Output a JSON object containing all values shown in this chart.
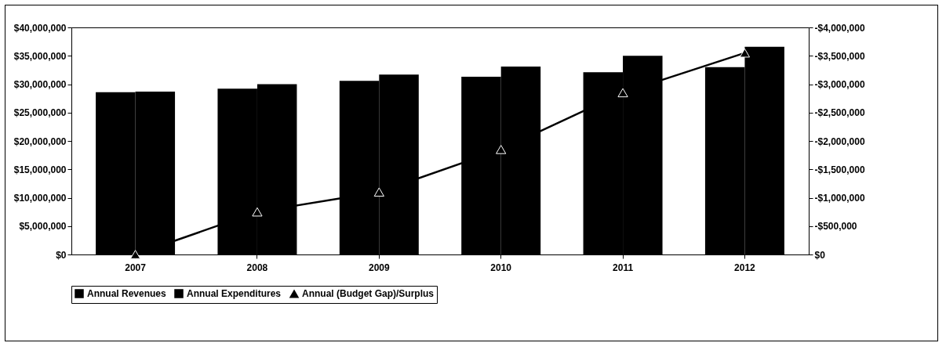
{
  "chart_data": {
    "type": "bar",
    "categories": [
      "2007",
      "2008",
      "2009",
      "2010",
      "2011",
      "2012"
    ],
    "series": [
      {
        "name": "Annual Revenues",
        "color": "#000000",
        "values": [
          28600000,
          29200000,
          30600000,
          31300000,
          32100000,
          33000000
        ]
      },
      {
        "name": "Annual Expenditures",
        "color": "#000000",
        "values": [
          28700000,
          30000000,
          31700000,
          33100000,
          35000000,
          36600000
        ]
      },
      {
        "name": "Annual (Budget Gap)/Surplus",
        "type": "line",
        "axis": "y2",
        "color": "#000000",
        "values": [
          0,
          -750000,
          -1100000,
          -1850000,
          -2850000,
          -3550000
        ]
      }
    ],
    "ylim": [
      0,
      40000000
    ],
    "yticks": [
      {
        "value": 0,
        "label": "$0"
      },
      {
        "value": 5000000,
        "label": "$5,000,000"
      },
      {
        "value": 10000000,
        "label": "$10,000,000"
      },
      {
        "value": 15000000,
        "label": "$15,000,000"
      },
      {
        "value": 20000000,
        "label": "$20,000,000"
      },
      {
        "value": 25000000,
        "label": "$25,000,000"
      },
      {
        "value": 30000000,
        "label": "$30,000,000"
      },
      {
        "value": 35000000,
        "label": "$35,000,000"
      },
      {
        "value": 40000000,
        "label": "$40,000,000"
      }
    ],
    "y2lim": [
      0,
      -4000000
    ],
    "y2ticks": [
      {
        "value": 0,
        "label": "$0"
      },
      {
        "value": -500000,
        "label": "-$500,000"
      },
      {
        "value": -1000000,
        "label": "-$1,000,000"
      },
      {
        "value": -1500000,
        "label": "-$1,500,000"
      },
      {
        "value": -2000000,
        "label": "-$2,000,000"
      },
      {
        "value": -2500000,
        "label": "-$2,500,000"
      },
      {
        "value": -3000000,
        "label": "-$3,000,000"
      },
      {
        "value": -3500000,
        "label": "-$3,500,000"
      },
      {
        "value": -4000000,
        "label": "-$4,000,000"
      }
    ],
    "grid": false,
    "legend": "bottom",
    "marker": "triangle"
  }
}
